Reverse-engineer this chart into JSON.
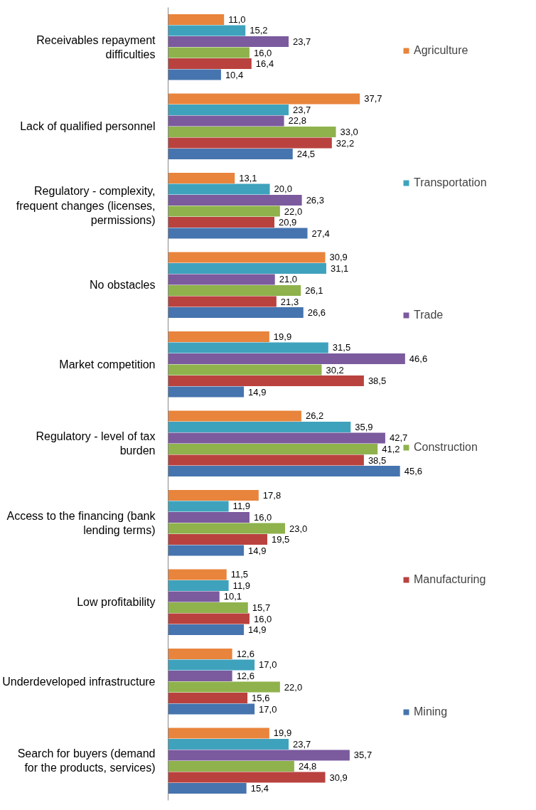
{
  "chart_data": {
    "type": "bar",
    "orientation": "horizontal",
    "categories": [
      "Receivables repayment\ndifficulties",
      "Lack of qualified personnel",
      "Regulatory - complexity,\nfrequent changes (licenses,\npermissions)",
      "No obstacles",
      "Market competition",
      "Regulatory - level of tax\nburden",
      "Access to the financing (bank\nlending terms)",
      "Low profitability",
      "Underdeveloped infrastructure",
      "Search for buyers (demand\nfor the products, services)"
    ],
    "series": [
      {
        "name": "Agriculture",
        "color": "#e8843c",
        "values": [
          11.0,
          37.7,
          13.1,
          30.9,
          19.9,
          26.2,
          17.8,
          11.5,
          12.6,
          19.9
        ],
        "value_labels": [
          "11,0",
          "37,7",
          "13,1",
          "30,9",
          "19,9",
          "26,2",
          "17,8",
          "11,5",
          "12,6",
          "19,9"
        ]
      },
      {
        "name": "Transportation",
        "color": "#3fa2bd",
        "values": [
          15.2,
          23.7,
          20.0,
          31.1,
          31.5,
          35.9,
          11.9,
          11.9,
          17.0,
          23.7
        ],
        "value_labels": [
          "15,2",
          "23,7",
          "20,0",
          "31,1",
          "31,5",
          "35,9",
          "11,9",
          "11,9",
          "17,0",
          "23,7"
        ]
      },
      {
        "name": "Trade",
        "color": "#7b5a9e",
        "values": [
          23.7,
          22.8,
          26.3,
          21.0,
          46.6,
          42.7,
          16.0,
          10.1,
          12.6,
          35.7
        ],
        "value_labels": [
          "23,7",
          "22,8",
          "26,3",
          "21,0",
          "46,6",
          "42,7",
          "16,0",
          "10,1",
          "12,6",
          "35,7"
        ]
      },
      {
        "name": "Construction",
        "color": "#8fb24d",
        "values": [
          16.0,
          33.0,
          22.0,
          26.1,
          30.2,
          41.2,
          23.0,
          15.7,
          22.0,
          24.8
        ],
        "value_labels": [
          "16,0",
          "33,0",
          "22,0",
          "26,1",
          "30,2",
          "41,2",
          "23,0",
          "15,7",
          "22,0",
          "24,8"
        ]
      },
      {
        "name": "Manufacturing",
        "color": "#b9423f",
        "values": [
          16.4,
          32.2,
          20.9,
          21.3,
          38.5,
          38.5,
          19.5,
          16.0,
          15.6,
          30.9
        ],
        "value_labels": [
          "16,4",
          "32,2",
          "20,9",
          "21,3",
          "38,5",
          "38,5",
          "19,5",
          "16,0",
          "15,6",
          "30,9"
        ]
      },
      {
        "name": "Mining",
        "color": "#4674ae",
        "values": [
          10.4,
          24.5,
          27.4,
          26.6,
          14.9,
          45.6,
          14.9,
          14.9,
          17.0,
          15.4
        ],
        "value_labels": [
          "10,4",
          "24,5",
          "27,4",
          "26,6",
          "14,9",
          "45,6",
          "14,9",
          "14,9",
          "17,0",
          "15,4"
        ]
      }
    ],
    "tick_labels": "y",
    "legend": "right"
  }
}
